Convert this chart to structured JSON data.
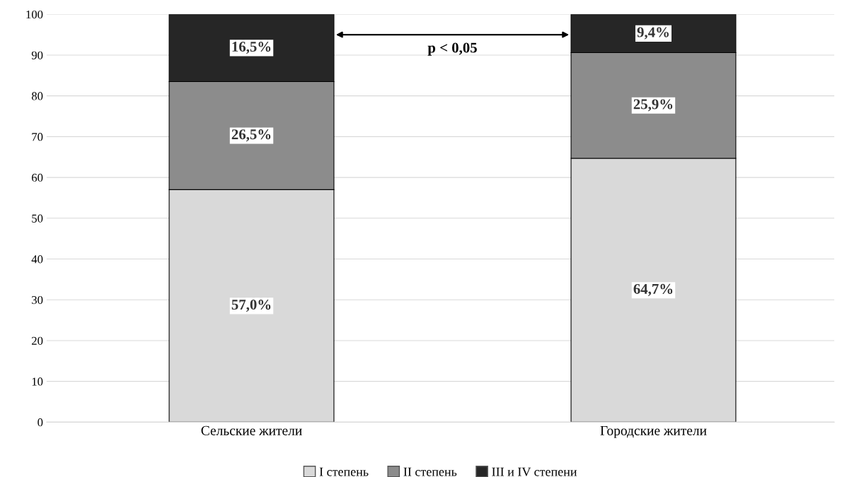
{
  "chart_data": {
    "type": "bar",
    "stacked": true,
    "categories": [
      "Сельские жители",
      "Городские жители"
    ],
    "series": [
      {
        "name": "I степень",
        "color": "#d9d9d9",
        "values": [
          57.0,
          64.7
        ],
        "value_labels": [
          "57,0%",
          "64,7%"
        ]
      },
      {
        "name": "II степень",
        "color": "#8c8c8c",
        "values": [
          26.5,
          25.9
        ],
        "value_labels": [
          "26,5%",
          "25,9%"
        ]
      },
      {
        "name": "III и IV степени",
        "color": "#262626",
        "values": [
          16.5,
          9.4
        ],
        "value_labels": [
          "16,5%",
          "9,4%"
        ]
      }
    ],
    "ylim": [
      0,
      100
    ],
    "yticks": [
      0,
      10,
      20,
      30,
      40,
      50,
      60,
      70,
      80,
      90,
      100
    ],
    "grid": "y",
    "legend": "bottom",
    "annotations": [
      "p < 0,05"
    ]
  }
}
